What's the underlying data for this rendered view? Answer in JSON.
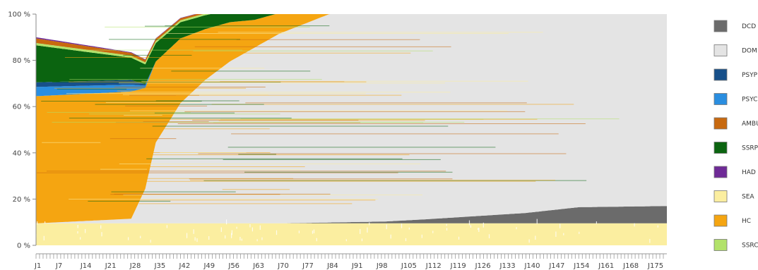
{
  "chart_data": {
    "type": "area",
    "x_tick_labels": [
      "J1",
      "J7",
      "J14",
      "J21",
      "J28",
      "J35",
      "J42",
      "J49",
      "J56",
      "J63",
      "J70",
      "J77",
      "J84",
      "J91",
      "J98",
      "J105",
      "J112",
      "J119",
      "J126",
      "J133",
      "J140",
      "J147",
      "J154",
      "J161",
      "J168",
      "J175"
    ],
    "x_tick_days": [
      1,
      7,
      14,
      21,
      28,
      35,
      42,
      49,
      56,
      63,
      70,
      77,
      84,
      91,
      98,
      105,
      112,
      119,
      126,
      133,
      140,
      147,
      154,
      161,
      168,
      175
    ],
    "x_range": [
      1,
      180
    ],
    "y_tick_labels": [
      "0 %",
      "20 %",
      "40 %",
      "60 %",
      "80 %",
      "100 %"
    ],
    "y_tick_values": [
      0,
      20,
      40,
      60,
      80,
      100
    ],
    "ylim": [
      0,
      100
    ],
    "grid": false,
    "legend_position": "right",
    "colors": {
      "DCD": "#6b6b6b",
      "DOM": "#e4e4e4",
      "PSYP": "#17508a",
      "PSYC": "#2a8ee0",
      "AMBU": "#c8690f",
      "SSRP": "#0b6410",
      "HAD": "#6e2a96",
      "SEA": "#fbeea0",
      "HC": "#f5a511",
      "SSRC": "#b2e26a"
    },
    "legend": [
      {
        "label": "DCD",
        "color": "#6b6b6b"
      },
      {
        "label": "DOM",
        "color": "#e4e4e4"
      },
      {
        "label": "PSYP",
        "color": "#17508a"
      },
      {
        "label": "PSYC",
        "color": "#2a8ee0"
      },
      {
        "label": "AMBU",
        "color": "#c8690f"
      },
      {
        "label": "SSRP",
        "color": "#0b6410"
      },
      {
        "label": "HAD",
        "color": "#6e2a96"
      },
      {
        "label": "SEA",
        "color": "#fbeea0"
      },
      {
        "label": "HC",
        "color": "#f5a511"
      },
      {
        "label": "SSRC",
        "color": "#b2e26a"
      }
    ],
    "series": [
      {
        "name": "SEA",
        "x": [
          1,
          112,
          180
        ],
        "y": [
          9.5,
          9.5,
          9.5
        ]
      },
      {
        "name": "DCD",
        "x": [
          1,
          70,
          100,
          112,
          140,
          155,
          180
        ],
        "y": [
          0,
          0,
          0.8,
          1.8,
          4.5,
          7,
          7.5
        ]
      },
      {
        "name": "DOM",
        "x": [
          1,
          28,
          32,
          35,
          42,
          49,
          56,
          63,
          70,
          84,
          91,
          105,
          112,
          180
        ],
        "y": [
          0,
          2,
          15,
          35,
          52,
          62,
          70,
          76,
          82,
          90,
          93,
          96,
          97.5,
          88
        ]
      },
      {
        "name": "HC",
        "x": [
          1,
          28,
          35,
          42,
          49,
          56,
          63,
          70,
          84,
          91,
          105,
          112,
          180
        ],
        "y": [
          55,
          55,
          35,
          28,
          22,
          17,
          12,
          9,
          4,
          3,
          1,
          0.5,
          0
        ]
      },
      {
        "name": "PSYC",
        "x": [
          1,
          28,
          32,
          35,
          180
        ],
        "y": [
          4,
          3,
          1,
          0,
          0
        ]
      },
      {
        "name": "PSYP",
        "x": [
          1,
          28,
          32,
          35,
          180
        ],
        "y": [
          2,
          2,
          0.5,
          0,
          0
        ]
      },
      {
        "name": "SSRP",
        "x": [
          1,
          35,
          49,
          63,
          84,
          105,
          112,
          180
        ],
        "y": [
          16,
          8,
          6,
          5,
          3,
          1.5,
          0.5,
          0
        ]
      },
      {
        "name": "SSRC",
        "x": [
          1,
          112,
          140,
          180
        ],
        "y": [
          1,
          0.5,
          2,
          2.5
        ]
      },
      {
        "name": "AMBU",
        "x": [
          1,
          35,
          63,
          112,
          180
        ],
        "y": [
          2,
          1,
          0.5,
          0.3,
          0.5
        ]
      },
      {
        "name": "HAD",
        "x": [
          1,
          35,
          63,
          180
        ],
        "y": [
          0.5,
          0.2,
          0.1,
          0
        ]
      }
    ]
  }
}
